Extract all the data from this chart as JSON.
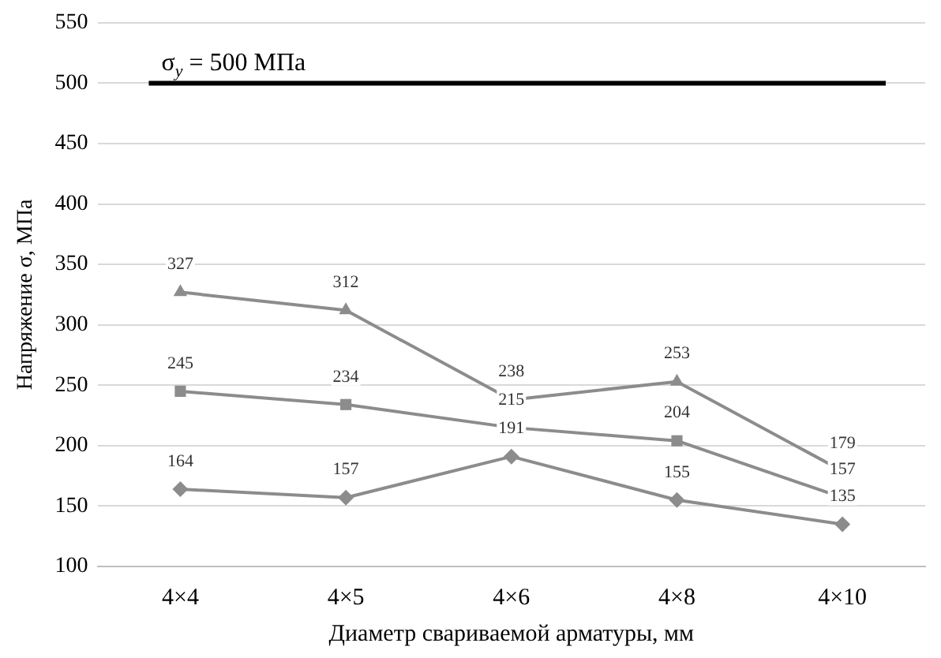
{
  "chart_data": {
    "type": "line",
    "xlabel": "Диаметр свариваемой арматуры, мм",
    "ylabel": "Напряжение σ, МПа",
    "categories": [
      "4×4",
      "4×5",
      "4×6",
      "4×8",
      "4×10"
    ],
    "series": [
      {
        "color": "#8c8c8c",
        "marker": "triangle",
        "values": [
          327,
          312,
          238,
          253,
          179
        ]
      },
      {
        "color": "#8c8c8c",
        "marker": "square",
        "values": [
          245,
          234,
          215,
          204,
          157
        ]
      },
      {
        "color": "#8c8c8c",
        "marker": "diamond",
        "values": [
          164,
          157,
          191,
          155,
          135
        ]
      }
    ],
    "ylim": [
      100,
      550
    ],
    "yticks": [
      100,
      150,
      200,
      250,
      300,
      350,
      400,
      450,
      500,
      550
    ],
    "grid": "y",
    "legend": false,
    "data_labels": true,
    "ref_lines": [
      {
        "axis": "y",
        "value": 500,
        "label": "σ$_{y}$ = 500 МПа",
        "color": "#000000"
      }
    ]
  }
}
